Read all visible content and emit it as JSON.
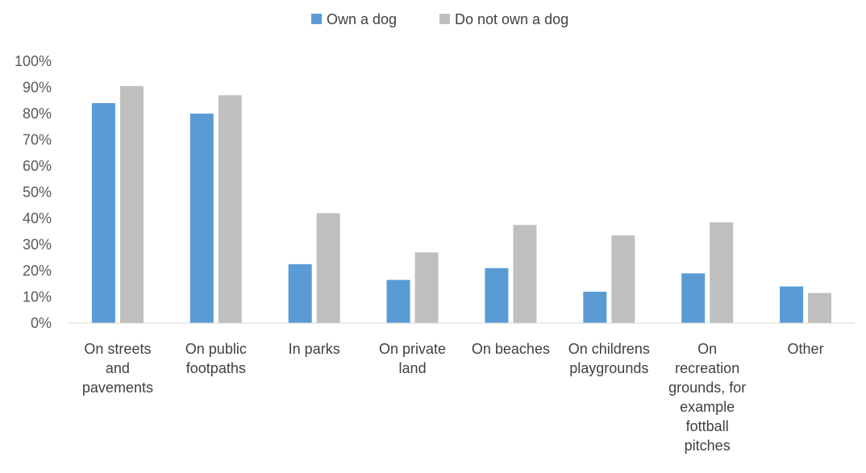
{
  "chart_data": {
    "type": "bar",
    "categories": [
      [
        "On streets",
        "and",
        "pavements"
      ],
      [
        "On public",
        "footpaths"
      ],
      [
        "In parks"
      ],
      [
        "On private",
        "land"
      ],
      [
        "On beaches"
      ],
      [
        "On childrens",
        "playgrounds"
      ],
      [
        "On",
        "recreation",
        "grounds, for",
        "example",
        "fottball",
        "pitches"
      ],
      [
        "Other"
      ]
    ],
    "series": [
      {
        "name": "Own a dog",
        "color": "#5b9bd5",
        "values": [
          84,
          80,
          22.5,
          16.5,
          21,
          12,
          19,
          14
        ]
      },
      {
        "name": "Do not own a dog",
        "color": "#bfbfbf",
        "values": [
          90.5,
          87,
          42,
          27,
          37.5,
          33.5,
          38.5,
          11.5
        ]
      }
    ],
    "ylim": [
      0,
      100
    ],
    "yticks": [
      "0%",
      "10%",
      "20%",
      "30%",
      "40%",
      "50%",
      "60%",
      "70%",
      "80%",
      "90%",
      "100%"
    ],
    "grid": false,
    "legend_position": "top-center"
  }
}
